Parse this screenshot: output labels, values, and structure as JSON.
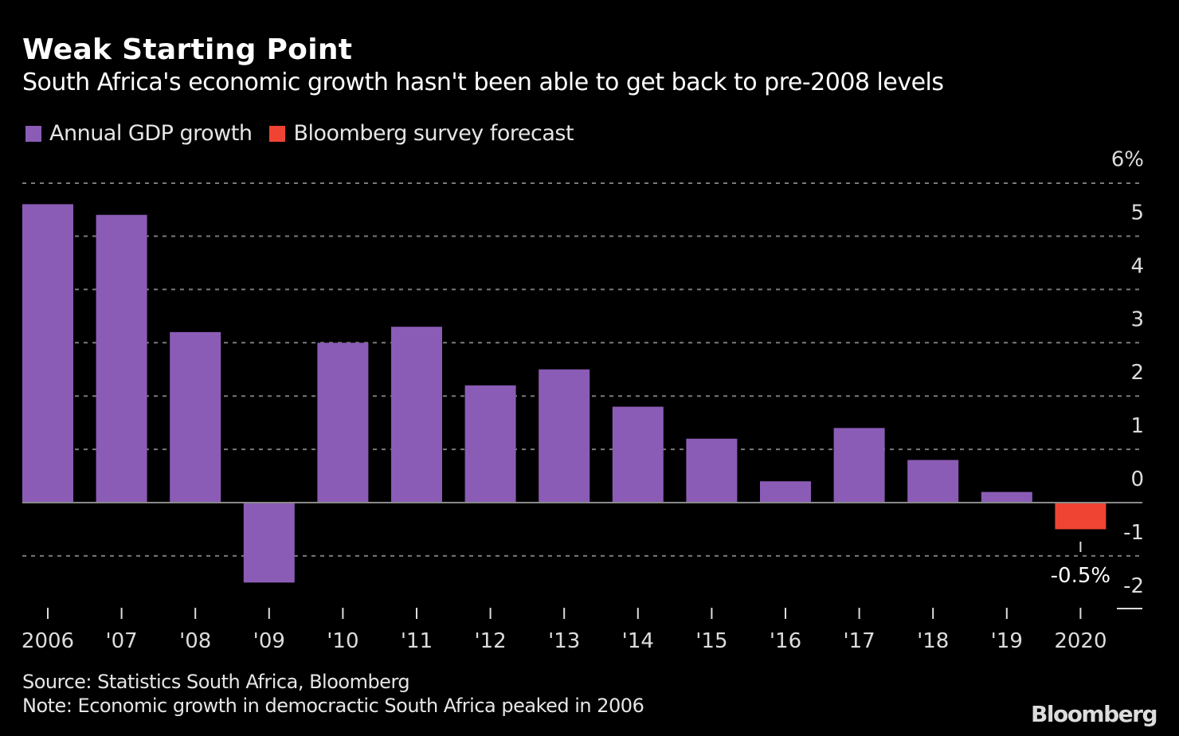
{
  "chart_data": {
    "type": "bar",
    "title": "Weak Starting Point",
    "subtitle": "South Africa's economic growth hasn't been able to get back to pre-2008 levels",
    "xlabel": "",
    "ylabel": "",
    "ylim": [
      -2,
      6
    ],
    "yticks": [
      6,
      5,
      4,
      3,
      2,
      1,
      0,
      -1,
      -2
    ],
    "ytick_labels": [
      "6%",
      "5",
      "4",
      "3",
      "2",
      "1",
      "0",
      "-1",
      "-2"
    ],
    "grid": true,
    "legend_position": "top-left",
    "categories": [
      "2006",
      "'07",
      "'08",
      "'09",
      "'10",
      "'11",
      "'12",
      "'13",
      "'14",
      "'15",
      "'16",
      "'17",
      "'18",
      "'19",
      "2020"
    ],
    "series": [
      {
        "name": "Annual GDP growth",
        "color": "#8b5cb6",
        "values": [
          5.6,
          5.4,
          3.2,
          -1.5,
          3.0,
          3.3,
          2.2,
          2.5,
          1.8,
          1.2,
          0.4,
          1.4,
          0.8,
          0.2,
          null
        ]
      },
      {
        "name": "Bloomberg survey forecast",
        "color": "#ef4433",
        "values": [
          null,
          null,
          null,
          null,
          null,
          null,
          null,
          null,
          null,
          null,
          null,
          null,
          null,
          null,
          -0.5
        ]
      }
    ],
    "annotations": [
      {
        "category": "2020",
        "text": "-0.5%"
      }
    ]
  },
  "footer": {
    "source": "Source: Statistics South Africa, Bloomberg",
    "note": "Note: Economic growth in democractic South Africa peaked in 2006",
    "brand": "Bloomberg"
  }
}
